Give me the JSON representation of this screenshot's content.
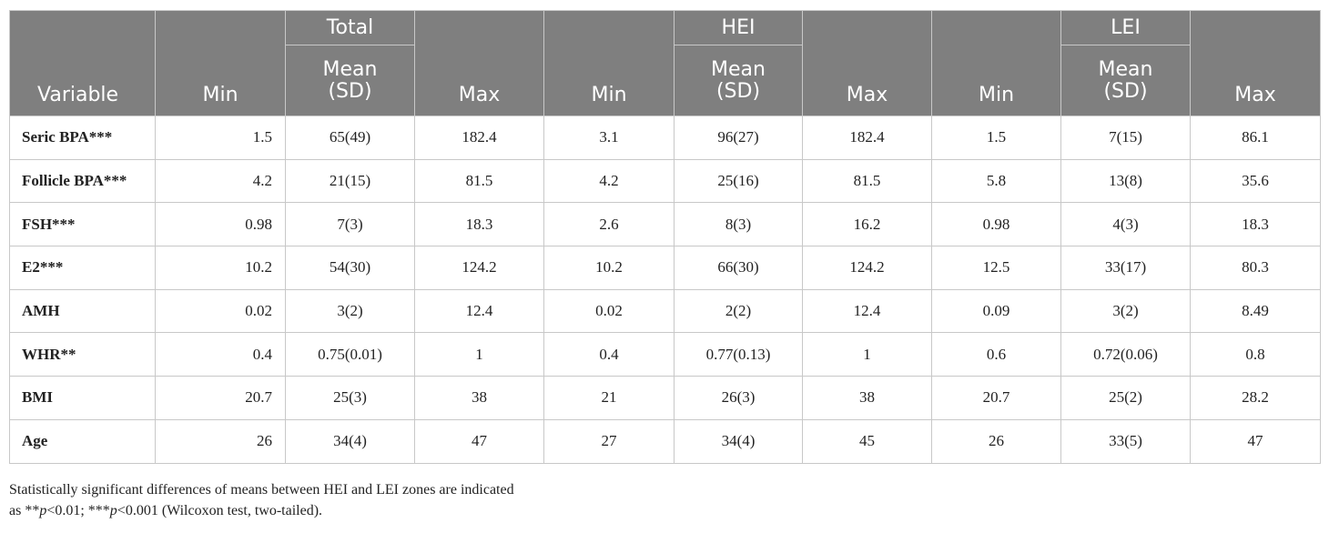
{
  "table": {
    "header_top": [
      "Variable",
      "Min",
      "Total",
      "Max",
      "Min",
      "HEI",
      "Max",
      "Min",
      "LEI",
      "Max"
    ],
    "header_sub": [
      "Mean\n(SD)",
      "Mean\n(SD)",
      "Mean\n(SD)"
    ],
    "rows": [
      [
        "Seric BPA***",
        "1.5",
        "65(49)",
        "182.4",
        "3.1",
        "96(27)",
        "182.4",
        "1.5",
        "7(15)",
        "86.1"
      ],
      [
        "Follicle BPA***",
        "4.2",
        "21(15)",
        "81.5",
        "4.2",
        "25(16)",
        "81.5",
        "5.8",
        "13(8)",
        "35.6"
      ],
      [
        "FSH***",
        "0.98",
        "7(3)",
        "18.3",
        "2.6",
        "8(3)",
        "16.2",
        "0.98",
        "4(3)",
        "18.3"
      ],
      [
        "E2***",
        "10.2",
        "54(30)",
        "124.2",
        "10.2",
        "66(30)",
        "124.2",
        "12.5",
        "33(17)",
        "80.3"
      ],
      [
        "AMH",
        "0.02",
        "3(2)",
        "12.4",
        "0.02",
        "2(2)",
        "12.4",
        "0.09",
        "3(2)",
        "8.49"
      ],
      [
        "WHR**",
        "0.4",
        "0.75(0.01)",
        "1",
        "0.4",
        "0.77(0.13)",
        "1",
        "0.6",
        "0.72(0.06)",
        "0.8"
      ],
      [
        "BMI",
        "20.7",
        "25(3)",
        "38",
        "21",
        "26(3)",
        "38",
        "20.7",
        "25(2)",
        "28.2"
      ],
      [
        "Age",
        "26",
        "34(4)",
        "47",
        "27",
        "34(4)",
        "45",
        "26",
        "33(5)",
        "47"
      ]
    ]
  },
  "footnote": {
    "line1": "Statistically significant differences of means between HEI and LEI zones are indicated",
    "line2": [
      "as **",
      "p",
      "<0.01; ***",
      "p",
      "<0.001 (Wilcoxon test, two-tailed)."
    ]
  }
}
